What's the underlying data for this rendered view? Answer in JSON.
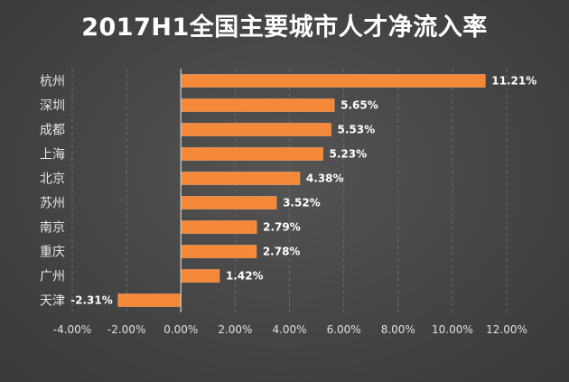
{
  "colors": {
    "bar": "#f5893a",
    "bar_edge": "#ffa462",
    "text": "#ffffff",
    "grid": "#6a6a6a",
    "background": "#474747"
  },
  "chart_data": {
    "type": "bar",
    "orientation": "horizontal",
    "title": "2017H1全国主要城市人才净流入率",
    "xlabel": "",
    "ylabel": "",
    "xlim": [
      -0.04,
      0.12
    ],
    "x_ticks": [
      -0.04,
      -0.02,
      0,
      0.02,
      0.04,
      0.06,
      0.08,
      0.1,
      0.12
    ],
    "x_tick_labels": [
      "-4.00%",
      "-2.00%",
      "0.00%",
      "2.00%",
      "4.00%",
      "6.00%",
      "8.00%",
      "10.00%",
      "12.00%"
    ],
    "grid": "vertical dashed",
    "legend": "none",
    "categories": [
      "杭州",
      "深圳",
      "成都",
      "上海",
      "北京",
      "苏州",
      "南京",
      "重庆",
      "广州",
      "天津"
    ],
    "values": [
      0.1121,
      0.0565,
      0.0553,
      0.0523,
      0.0438,
      0.0352,
      0.0279,
      0.0278,
      0.0142,
      -0.0231
    ],
    "value_labels": [
      "11.21%",
      "5.65%",
      "5.53%",
      "5.23%",
      "4.38%",
      "3.52%",
      "2.79%",
      "2.78%",
      "1.42%",
      "-2.31%"
    ]
  }
}
